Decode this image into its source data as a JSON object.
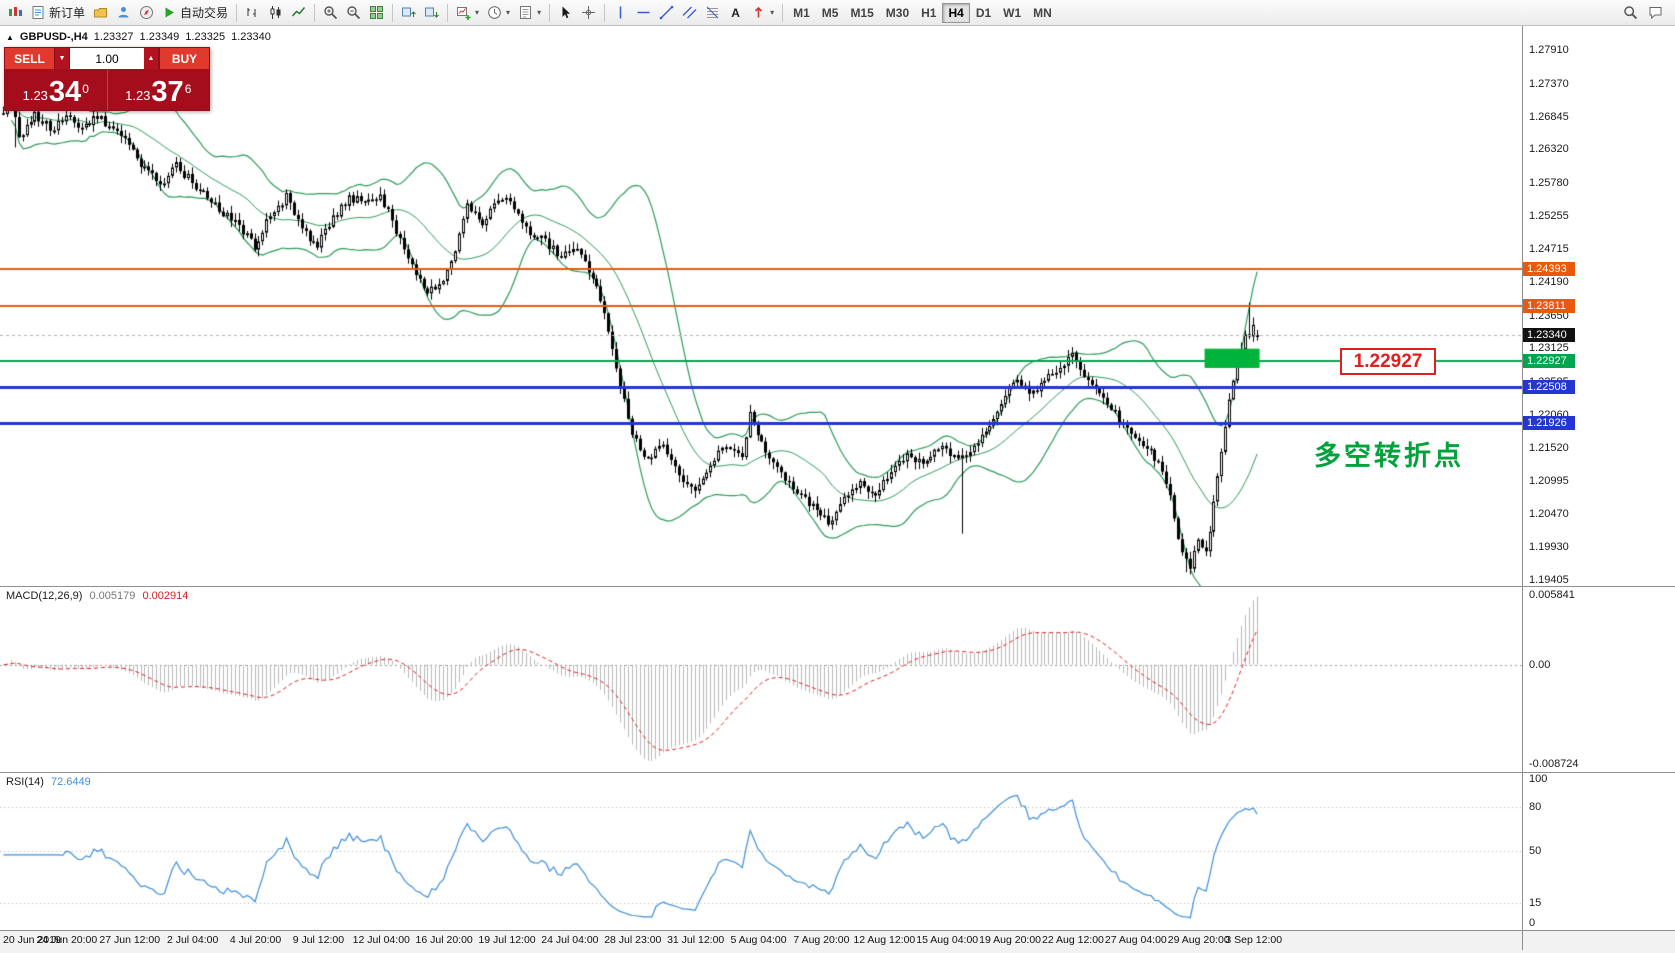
{
  "toolbar": {
    "groups": [
      {
        "items": [
          {
            "name": "app-logo",
            "icon": "mt4-logo-icon",
            "static": true
          },
          {
            "name": "new-order-button",
            "icon": "new-order-icon",
            "label": "新订单"
          },
          {
            "name": "profiles-button",
            "icon": "profiles-icon"
          },
          {
            "name": "market-watch-button",
            "icon": "market-watch-icon"
          },
          {
            "name": "navigator-button",
            "icon": "navigator-icon"
          },
          {
            "name": "autotrading-button",
            "icon": "autotrading-icon",
            "label": "自动交易"
          }
        ]
      },
      {
        "items": [
          {
            "name": "bar-chart-button",
            "icon": "bar-chart-icon"
          },
          {
            "name": "candlestick-chart-button",
            "icon": "candle-chart-icon"
          },
          {
            "name": "line-chart-button",
            "icon": "line-chart-icon"
          }
        ]
      },
      {
        "items": [
          {
            "name": "zoom-in-button",
            "icon": "zoom-in-icon"
          },
          {
            "name": "zoom-out-button",
            "icon": "zoom-out-icon"
          },
          {
            "name": "tile-windows-button",
            "icon": "tile-windows-icon"
          }
        ]
      },
      {
        "items": [
          {
            "name": "arrange-windows-button",
            "icon": "arrange-up-icon"
          },
          {
            "name": "cascade-windows-button",
            "icon": "arrange-down-icon"
          }
        ]
      },
      {
        "items": [
          {
            "name": "new-chart-button",
            "icon": "new-chart-icon",
            "caret": true
          },
          {
            "name": "periods-button",
            "icon": "clock-icon",
            "caret": true
          },
          {
            "name": "templates-button",
            "icon": "template-icon",
            "caret": true
          }
        ]
      },
      {
        "items": [
          {
            "name": "cursor-tool-button",
            "icon": "cursor-icon"
          },
          {
            "name": "crosshair-tool-button",
            "icon": "crosshair-icon"
          }
        ]
      },
      {
        "items": [
          {
            "name": "vertical-line-tool-button",
            "icon": "vline-icon"
          },
          {
            "name": "horizontal-line-tool-button",
            "icon": "hline-icon"
          },
          {
            "name": "trendline-tool-button",
            "icon": "trendline-icon"
          },
          {
            "name": "channel-tool-button",
            "icon": "channel-icon"
          },
          {
            "name": "fibonacci-tool-button",
            "icon": "fibonacci-icon"
          },
          {
            "name": "text-tool-button",
            "icon": "text-icon"
          },
          {
            "name": "arrows-tool-button",
            "icon": "arrows-icon",
            "caret": true
          }
        ]
      },
      {
        "items": [
          {
            "name": "timeframe-m1-button",
            "label": "M1",
            "timeframe": true
          },
          {
            "name": "timeframe-m5-button",
            "label": "M5",
            "timeframe": true
          },
          {
            "name": "timeframe-m15-button",
            "label": "M15",
            "timeframe": true
          },
          {
            "name": "timeframe-m30-button",
            "label": "M30",
            "timeframe": true
          },
          {
            "name": "timeframe-h1-button",
            "label": "H1",
            "timeframe": true
          },
          {
            "name": "timeframe-h4-button",
            "label": "H4",
            "timeframe": true,
            "active": true
          },
          {
            "name": "timeframe-d1-button",
            "label": "D1",
            "timeframe": true
          },
          {
            "name": "timeframe-w1-button",
            "label": "W1",
            "timeframe": true
          },
          {
            "name": "timeframe-mn-button",
            "label": "MN",
            "timeframe": true
          }
        ]
      }
    ],
    "right_items": [
      {
        "name": "search-button",
        "icon": "search-icon"
      },
      {
        "name": "chat-button",
        "icon": "chat-icon"
      }
    ]
  },
  "symbol_info": {
    "marker": "▲",
    "title": "GBPUSD-,H4",
    "open": "1.23327",
    "high": "1.23349",
    "low": "1.23325",
    "close": "1.23340"
  },
  "trade_panel": {
    "sell_label": "SELL",
    "buy_label": "BUY",
    "volume": "1.00",
    "caret_down": "▼",
    "caret_up": "▲",
    "sell_price_int": "1.23",
    "sell_price_big": "34",
    "sell_price_sup": "0",
    "buy_price_int": "1.23",
    "buy_price_big": "37",
    "buy_price_sup": "6"
  },
  "annotations": {
    "level_label": "1.22927",
    "cn_note": "多空转折点"
  },
  "chart_data": {
    "type": "candlestick",
    "symbol": "GBPUSD-",
    "timeframe": "H4",
    "candle_count": 320,
    "last_open": 1.23327,
    "last_close": 1.2334,
    "price_scale_labels": [
      "1.27910",
      "1.27370",
      "1.26845",
      "1.26320",
      "1.25780",
      "1.25255",
      "1.24715",
      "1.24190",
      "1.23650",
      "1.23125",
      "1.22585",
      "1.22060",
      "1.21520",
      "1.20995",
      "1.20470",
      "1.19930",
      "1.19405"
    ],
    "layout": {
      "price_max": 1.283,
      "price_min": 1.1931,
      "candle_spacing": 3.93,
      "bollinger_period": 20,
      "bollinger_dev": 2,
      "grid": false,
      "legend": false
    },
    "bollinger_color": "#2e9b5b",
    "price_anchors": [
      [
        0,
        1.269
      ],
      [
        2,
        1.2725
      ],
      [
        4,
        1.2645
      ],
      [
        8,
        1.269
      ],
      [
        12,
        1.2665
      ],
      [
        16,
        1.268
      ],
      [
        20,
        1.267
      ],
      [
        24,
        1.2685
      ],
      [
        28,
        1.266
      ],
      [
        32,
        1.264
      ],
      [
        36,
        1.26
      ],
      [
        40,
        1.2575
      ],
      [
        44,
        1.2605
      ],
      [
        48,
        1.258
      ],
      [
        52,
        1.2555
      ],
      [
        56,
        1.253
      ],
      [
        60,
        1.251
      ],
      [
        64,
        1.2475
      ],
      [
        68,
        1.253
      ],
      [
        72,
        1.2555
      ],
      [
        76,
        1.25
      ],
      [
        80,
        1.248
      ],
      [
        84,
        1.252
      ],
      [
        88,
        1.2555
      ],
      [
        92,
        1.2545
      ],
      [
        96,
        1.256
      ],
      [
        100,
        1.25
      ],
      [
        104,
        1.2445
      ],
      [
        108,
        1.24
      ],
      [
        112,
        1.2425
      ],
      [
        116,
        1.249
      ],
      [
        118,
        1.254
      ],
      [
        122,
        1.251
      ],
      [
        126,
        1.2555
      ],
      [
        130,
        1.254
      ],
      [
        134,
        1.25
      ],
      [
        138,
        1.2485
      ],
      [
        142,
        1.246
      ],
      [
        146,
        1.247
      ],
      [
        150,
        1.243
      ],
      [
        152,
        1.239
      ],
      [
        154,
        1.234
      ],
      [
        156,
        1.228
      ],
      [
        158,
        1.223
      ],
      [
        160,
        1.218
      ],
      [
        164,
        1.213
      ],
      [
        168,
        1.216
      ],
      [
        172,
        1.211
      ],
      [
        176,
        1.2085
      ],
      [
        180,
        1.213
      ],
      [
        184,
        1.216
      ],
      [
        188,
        1.214
      ],
      [
        190,
        1.2205
      ],
      [
        194,
        1.215
      ],
      [
        198,
        1.211
      ],
      [
        202,
        1.208
      ],
      [
        206,
        1.206
      ],
      [
        210,
        1.203
      ],
      [
        214,
        1.207
      ],
      [
        218,
        1.2095
      ],
      [
        222,
        1.208
      ],
      [
        226,
        1.211
      ],
      [
        230,
        1.214
      ],
      [
        234,
        1.213
      ],
      [
        238,
        1.2155
      ],
      [
        242,
        1.214
      ],
      [
        246,
        1.214
      ],
      [
        250,
        1.218
      ],
      [
        254,
        1.223
      ],
      [
        258,
        1.226
      ],
      [
        262,
        1.224
      ],
      [
        266,
        1.227
      ],
      [
        270,
        1.229
      ],
      [
        272,
        1.2305
      ],
      [
        276,
        1.226
      ],
      [
        280,
        1.223
      ],
      [
        284,
        1.22
      ],
      [
        288,
        1.217
      ],
      [
        292,
        1.215
      ],
      [
        296,
        1.21
      ],
      [
        298,
        1.204
      ],
      [
        300,
        1.198
      ],
      [
        302,
        1.196
      ],
      [
        304,
        1.201
      ],
      [
        306,
        1.1985
      ],
      [
        308,
        1.206
      ],
      [
        310,
        1.215
      ],
      [
        312,
        1.223
      ],
      [
        314,
        1.229
      ],
      [
        316,
        1.233
      ],
      [
        318,
        1.2345
      ],
      [
        319,
        1.2334
      ]
    ],
    "wick_spikes": [
      {
        "i": 3,
        "low": 1.2635
      },
      {
        "i": 244,
        "low": 1.2015
      },
      {
        "i": 301,
        "low": 1.1953
      },
      {
        "i": 317,
        "high": 1.2386
      }
    ],
    "hlines": [
      {
        "label": "1.24393",
        "price": 1.24393,
        "color": "#e8590c",
        "width": 2
      },
      {
        "label": "1.23811",
        "price": 1.23811,
        "color": "#e8590c",
        "width": 2
      },
      {
        "label": "1.22927",
        "price": 1.22927,
        "color": "#00a550",
        "width": 2
      },
      {
        "label": "1.22508",
        "price": 1.22508,
        "color": "#2336cf",
        "width": 3
      },
      {
        "label": "1.21926",
        "price": 1.21926,
        "color": "#2336cf",
        "width": 3
      }
    ],
    "current_price": {
      "value": "1.23340",
      "price": 1.2334,
      "bg": "#111111"
    },
    "green_rect": {
      "i0": 306,
      "i1": 320,
      "price_top": 1.2312,
      "price_bottom": 1.2281,
      "color": "#00b33a"
    },
    "time_labels": [
      {
        "i": 2,
        "text": "20 Jun 2019"
      },
      {
        "i": 16,
        "text": "24 Jun 20:00"
      },
      {
        "i": 32,
        "text": "27 Jun 12:00"
      },
      {
        "i": 48,
        "text": "2 Jul 04:00"
      },
      {
        "i": 64,
        "text": "4 Jul 20:00"
      },
      {
        "i": 80,
        "text": "9 Jul 12:00"
      },
      {
        "i": 96,
        "text": "12 Jul 04:00"
      },
      {
        "i": 112,
        "text": "16 Jul 20:00"
      },
      {
        "i": 128,
        "text": "19 Jul 12:00"
      },
      {
        "i": 144,
        "text": "24 Jul 04:00"
      },
      {
        "i": 160,
        "text": "28 Jul 23:00"
      },
      {
        "i": 176,
        "text": "31 Jul 12:00"
      },
      {
        "i": 192,
        "text": "5 Aug 04:00"
      },
      {
        "i": 208,
        "text": "7 Aug 20:00"
      },
      {
        "i": 224,
        "text": "12 Aug 12:00"
      },
      {
        "i": 240,
        "text": "15 Aug 04:00"
      },
      {
        "i": 256,
        "text": "19 Aug 20:00"
      },
      {
        "i": 272,
        "text": "22 Aug 12:00"
      },
      {
        "i": 288,
        "text": "27 Aug 04:00"
      },
      {
        "i": 304,
        "text": "29 Aug 20:00"
      },
      {
        "i": 318,
        "text": "3 Sep 12:00"
      }
    ],
    "indicators": {
      "macd": {
        "label": "MACD(12,26,9)",
        "value1": "0.005179",
        "value2": "0.002914",
        "scale_top": "0.005841",
        "scale_zero": "0.00",
        "scale_bottom": "-0.008724",
        "histogram_color": "#b8b8b8",
        "signal_color": "#e02020"
      },
      "rsi": {
        "label": "RSI(14)",
        "value": "72.6449",
        "levels": [
          80,
          50,
          15
        ],
        "scale_labels": [
          "100",
          "80",
          "50",
          "15",
          "0"
        ],
        "line_color": "#3f8fd9"
      }
    }
  }
}
